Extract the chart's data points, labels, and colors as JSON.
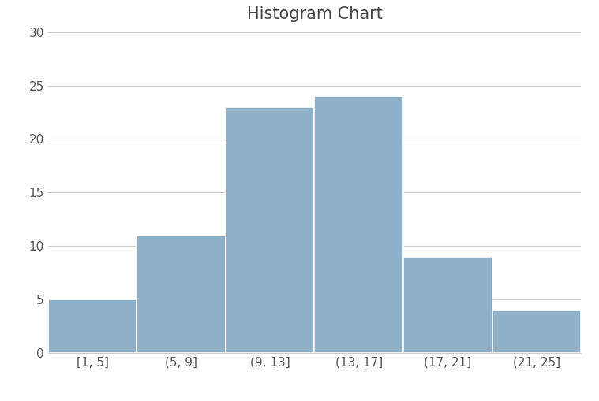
{
  "title": "Histogram Chart",
  "categories": [
    "[1, 5]",
    "(5, 9]",
    "(9, 13]",
    "(13, 17]",
    "(17, 21]",
    "(21, 25]"
  ],
  "values": [
    5,
    11,
    23,
    24,
    9,
    4
  ],
  "bar_color": "#8eb0c8",
  "bar_edge_color": "#ffffff",
  "ylim": [
    0,
    30
  ],
  "yticks": [
    0,
    5,
    10,
    15,
    20,
    25,
    30
  ],
  "grid_color": "#cccccc",
  "background_color": "#ffffff",
  "title_fontsize": 15,
  "tick_fontsize": 11
}
